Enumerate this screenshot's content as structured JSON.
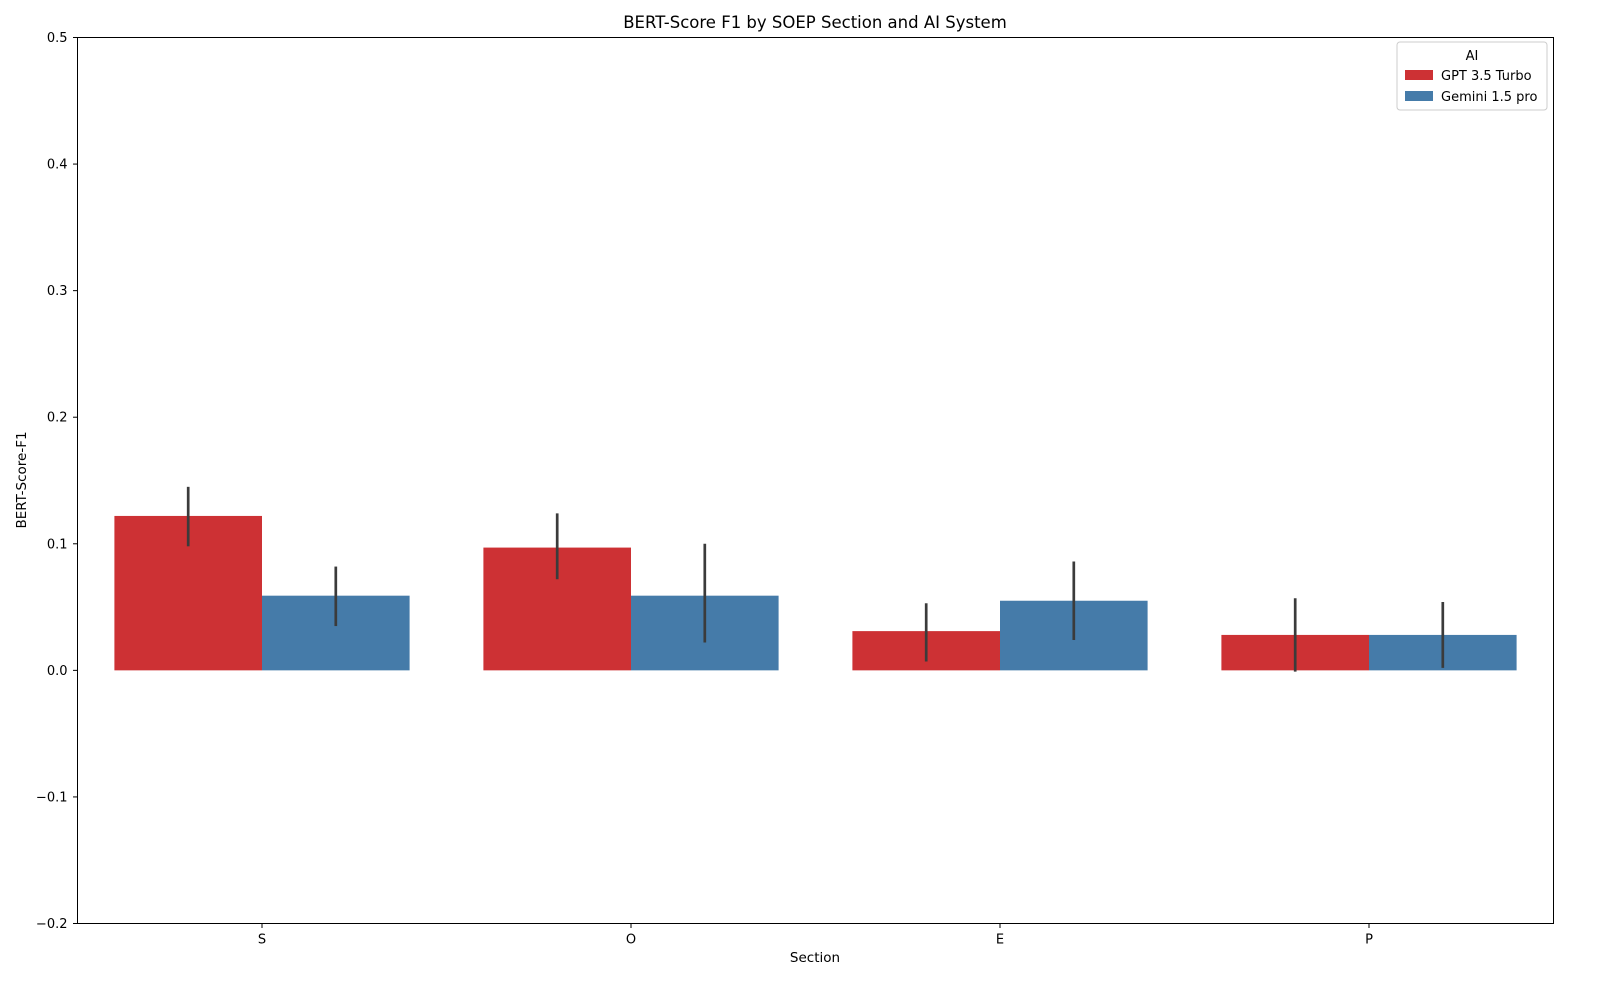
{
  "chart_data": {
    "type": "bar",
    "title": "BERT-Score F1 by SOEP Section and AI System",
    "xlabel": "Section",
    "ylabel": "BERT-Score-F1",
    "categories": [
      "S",
      "O",
      "E",
      "P"
    ],
    "ylim": [
      -0.2,
      0.5
    ],
    "yticks": [
      -0.2,
      -0.1,
      0.0,
      0.1,
      0.2,
      0.3,
      0.4,
      0.5
    ],
    "ytick_labels": [
      "−0.2",
      "−0.1",
      "0.0",
      "0.1",
      "0.2",
      "0.3",
      "0.4",
      "0.5"
    ],
    "grid": false,
    "legend": {
      "title": "AI",
      "position": "top-right"
    },
    "series": [
      {
        "name": "GPT 3.5 Turbo",
        "color": "#cd3134",
        "values": [
          0.122,
          0.097,
          0.031,
          0.028
        ],
        "ci_low": [
          0.098,
          0.072,
          0.007,
          -0.001
        ],
        "ci_high": [
          0.145,
          0.124,
          0.053,
          0.057
        ]
      },
      {
        "name": "Gemini 1.5 pro",
        "color": "#457ba9",
        "values": [
          0.059,
          0.059,
          0.055,
          0.028
        ],
        "ci_low": [
          0.035,
          0.022,
          0.024,
          0.002
        ],
        "ci_high": [
          0.082,
          0.1,
          0.086,
          0.054
        ]
      }
    ]
  }
}
